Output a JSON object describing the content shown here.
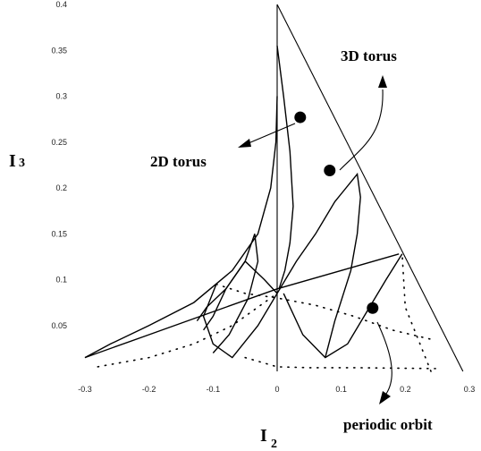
{
  "chart_data": {
    "type": "scatter",
    "x_ticks": [
      "-0.3",
      "-0.2",
      "-0.1",
      "0",
      "0.1",
      "0.2",
      "0.3"
    ],
    "y_ticks": [
      "0.05",
      "0.1",
      "0.15",
      "0.2",
      "0.25",
      "0.3",
      "0.35",
      "0.4"
    ],
    "xlim": [
      -0.3,
      0.3
    ],
    "ylim": [
      0.0,
      0.4
    ],
    "xlabel_main": "I",
    "xlabel_sub": "2",
    "ylabel_main": "I",
    "ylabel_sub": "3",
    "grid": false,
    "annotations": [
      {
        "text": "3D torus",
        "marker": [
          0.082,
          0.219
        ]
      },
      {
        "text": "2D torus",
        "marker": [
          0.036,
          0.277
        ]
      },
      {
        "text": "periodic orbit",
        "marker": [
          0.149,
          0.069
        ]
      }
    ],
    "boundary": [
      [
        0.0,
        0.4
      ],
      [
        0.29,
        0.0
      ]
    ],
    "vertical_axis": [
      [
        0.0,
        0.0
      ],
      [
        0.0,
        0.4
      ]
    ],
    "curves": [
      {
        "style": "solid",
        "points": [
          [
            0.0,
            0.355
          ],
          [
            0.01,
            0.3
          ],
          [
            0.02,
            0.24
          ],
          [
            0.025,
            0.18
          ],
          [
            0.02,
            0.14
          ],
          [
            0.012,
            0.11
          ],
          [
            0.003,
            0.09
          ]
        ]
      },
      {
        "style": "solid",
        "points": [
          [
            -0.3,
            0.015
          ],
          [
            -0.26,
            0.03
          ],
          [
            -0.2,
            0.05
          ],
          [
            -0.13,
            0.075
          ],
          [
            -0.07,
            0.11
          ],
          [
            -0.03,
            0.15
          ],
          [
            -0.01,
            0.2
          ],
          [
            -0.002,
            0.25
          ],
          [
            0.0,
            0.3
          ]
        ]
      },
      {
        "style": "solid",
        "points": [
          [
            -0.3,
            0.015
          ],
          [
            -0.2,
            0.04
          ],
          [
            -0.1,
            0.065
          ],
          [
            0.0,
            0.09
          ],
          [
            0.1,
            0.11
          ],
          [
            0.19,
            0.128
          ]
        ]
      },
      {
        "style": "solid",
        "points": [
          [
            0.0,
            0.085
          ],
          [
            0.03,
            0.12
          ],
          [
            0.06,
            0.15
          ],
          [
            0.09,
            0.185
          ],
          [
            0.125,
            0.215
          ],
          [
            0.13,
            0.19
          ],
          [
            0.125,
            0.15
          ],
          [
            0.115,
            0.11
          ],
          [
            0.09,
            0.055
          ],
          [
            0.075,
            0.015
          ]
        ]
      },
      {
        "style": "solid",
        "points": [
          [
            0.01,
            0.085
          ],
          [
            0.04,
            0.04
          ],
          [
            0.075,
            0.015
          ],
          [
            0.11,
            0.03
          ],
          [
            0.14,
            0.065
          ],
          [
            0.17,
            0.1
          ],
          [
            0.195,
            0.128
          ]
        ]
      },
      {
        "style": "solid",
        "points": [
          [
            -0.0,
            0.085
          ],
          [
            -0.03,
            0.05
          ],
          [
            -0.07,
            0.015
          ],
          [
            -0.1,
            0.03
          ],
          [
            -0.115,
            0.06
          ],
          [
            -0.095,
            0.095
          ]
        ]
      },
      {
        "style": "solid",
        "points": [
          [
            -0.035,
            0.15
          ],
          [
            -0.03,
            0.12
          ],
          [
            -0.045,
            0.08
          ],
          [
            -0.075,
            0.04
          ],
          [
            -0.1,
            0.02
          ]
        ]
      },
      {
        "style": "solid",
        "points": [
          [
            -0.035,
            0.15
          ],
          [
            -0.05,
            0.12
          ],
          [
            -0.08,
            0.09
          ],
          [
            -0.11,
            0.07
          ],
          [
            -0.125,
            0.055
          ]
        ]
      },
      {
        "style": "solid",
        "points": [
          [
            0.0,
            0.085
          ],
          [
            -0.02,
            0.1
          ],
          [
            -0.05,
            0.12
          ],
          [
            -0.08,
            0.09
          ],
          [
            -0.1,
            0.06
          ],
          [
            -0.115,
            0.045
          ]
        ]
      },
      {
        "style": "dotted",
        "points": [
          [
            -0.095,
            0.095
          ],
          [
            -0.05,
            0.085
          ],
          [
            0.0,
            0.08
          ],
          [
            0.06,
            0.072
          ],
          [
            0.12,
            0.06
          ],
          [
            0.18,
            0.045
          ],
          [
            0.24,
            0.035
          ]
        ]
      },
      {
        "style": "dotted",
        "points": [
          [
            -0.28,
            0.005
          ],
          [
            -0.2,
            0.015
          ],
          [
            -0.13,
            0.03
          ],
          [
            -0.07,
            0.05
          ],
          [
            -0.02,
            0.075
          ],
          [
            0.0,
            0.085
          ]
        ]
      },
      {
        "style": "dotted",
        "points": [
          [
            -0.05,
            0.015
          ],
          [
            0.0,
            0.005
          ],
          [
            0.05,
            0.004
          ],
          [
            0.12,
            0.004
          ],
          [
            0.25,
            0.003
          ]
        ]
      },
      {
        "style": "dotted",
        "points": [
          [
            0.24,
            0.0
          ],
          [
            0.22,
            0.035
          ],
          [
            0.2,
            0.07
          ],
          [
            0.195,
            0.128
          ]
        ]
      }
    ]
  }
}
